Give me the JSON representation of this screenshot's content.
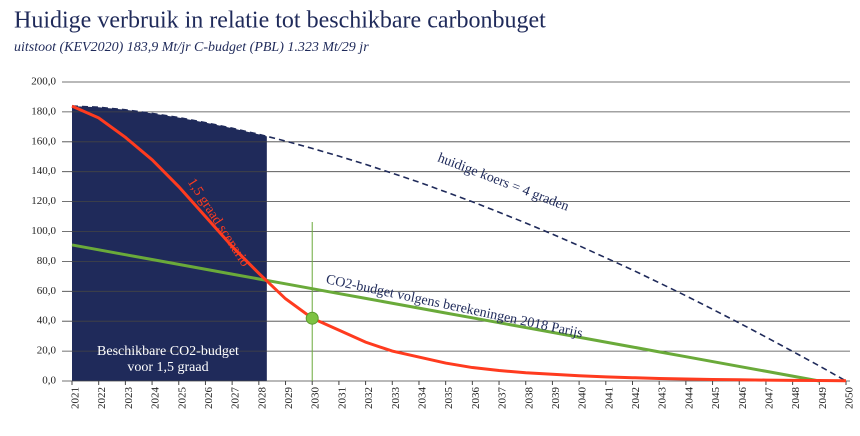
{
  "chart_data": {
    "type": "line",
    "title": "Huidige verbruik in relatie tot beschikbare carbonbuget",
    "subtitle": "uitstoot (KEV2020) 183,9 Mt/jr C-budget (PBL) 1.323 Mt/29 jr",
    "categories": [
      "2021",
      "2022",
      "2023",
      "2024",
      "2025",
      "2026",
      "2027",
      "2028",
      "2029",
      "2030",
      "2031",
      "2032",
      "2033",
      "2034",
      "2035",
      "2036",
      "2037",
      "2038",
      "2039",
      "2040",
      "2041",
      "2042",
      "2043",
      "2044",
      "2045",
      "2046",
      "2047",
      "2048",
      "2049",
      "2050"
    ],
    "series": [
      {
        "name": "huidige koers = 4 graden",
        "color": "#1f2a5a",
        "dashed": true,
        "values": [
          183.9,
          183.1,
          181.4,
          179,
          176.2,
          172.8,
          169.1,
          165,
          160.5,
          155.6,
          150.4,
          144.9,
          139,
          133,
          126.5,
          119.9,
          112.9,
          105.7,
          98.2,
          90.5,
          82.4,
          74.3,
          65.7,
          57,
          48,
          38.8,
          29.4,
          19.8,
          10.1,
          0
        ]
      },
      {
        "name": "1,5 graad scenario",
        "color": "#ff3b1f",
        "values": [
          183.9,
          176,
          163,
          148,
          130,
          110,
          90,
          72,
          55,
          42,
          34,
          26,
          20,
          16,
          12,
          9,
          7,
          5.5,
          4.5,
          3.5,
          2.8,
          2.2,
          1.7,
          1.3,
          1,
          0.8,
          0.6,
          0.4,
          0.3,
          0.2
        ]
      },
      {
        "name": "CO2-budget volgens berekeningen 2018 Parijs",
        "color": "#6aaa3a",
        "values": [
          91,
          87.75,
          84.5,
          81.25,
          78,
          74.75,
          71.5,
          68.25,
          65,
          61.75,
          58.5,
          55.25,
          52,
          48.75,
          45.5,
          42.25,
          39,
          35.75,
          32.5,
          29.25,
          26,
          22.75,
          19.5,
          16.25,
          13,
          9.75,
          6.5,
          3.25,
          0,
          null
        ]
      }
    ],
    "annotations": [
      "Beschikbare CO2-budget",
      "voor 1,5 graad"
    ],
    "ylim": [
      0,
      200
    ],
    "yticks": [
      {
        "value": 0,
        "label": "0,0"
      },
      {
        "value": 20,
        "label": "20,0"
      },
      {
        "value": 40,
        "label": "40,0"
      },
      {
        "value": 60,
        "label": "60,0"
      },
      {
        "value": 80,
        "label": "80,0"
      },
      {
        "value": 100,
        "label": "100,0"
      },
      {
        "value": 120,
        "label": "120,0"
      },
      {
        "value": 140,
        "label": "140,0"
      },
      {
        "value": 160,
        "label": "160,0"
      },
      {
        "value": 180,
        "label": "180,0"
      },
      {
        "value": 200,
        "label": "200,0"
      }
    ],
    "grid": true
  }
}
